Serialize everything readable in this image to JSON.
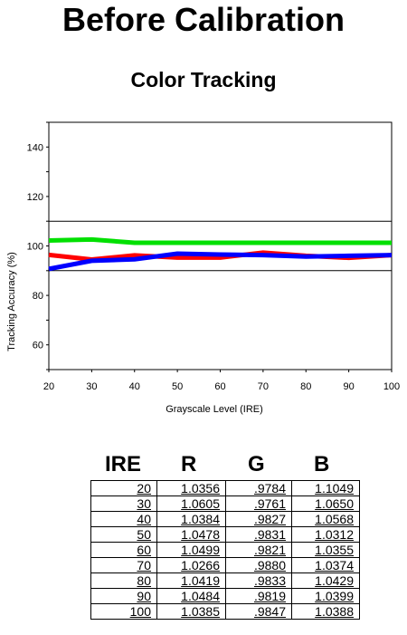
{
  "page": {
    "title": "Before Calibration",
    "subtitle": "Color Tracking"
  },
  "chart_data": {
    "type": "line",
    "xlabel": "Grayscale Level (IRE)",
    "ylabel": "Tracking Accuracy (%)",
    "x": [
      20,
      30,
      40,
      50,
      60,
      70,
      80,
      90,
      100
    ],
    "xticks": [
      "20",
      "30",
      "40",
      "50",
      "60",
      "70",
      "80",
      "90",
      "100"
    ],
    "yticks": [
      "60",
      "80",
      "100",
      "120",
      "140"
    ],
    "xlim": [
      20,
      100
    ],
    "ylim": [
      50,
      150
    ],
    "reference_lines": [
      90,
      110
    ],
    "series": [
      {
        "color": "#ff0000",
        "values": [
          96.4,
          94.5,
          96.2,
          95.3,
          95.3,
          97.3,
          96.0,
          95.2,
          96.3
        ]
      },
      {
        "color": "#00e000",
        "values": [
          102.2,
          102.6,
          101.3,
          101.3,
          101.3,
          101.3,
          101.3,
          101.3,
          101.3
        ]
      },
      {
        "color": "#0000ff",
        "values": [
          90.7,
          94.0,
          94.6,
          96.9,
          96.5,
          96.3,
          95.7,
          96.0,
          96.3
        ]
      }
    ]
  },
  "table": {
    "headers": [
      "IRE",
      "R",
      "G",
      "B"
    ],
    "rows": [
      [
        "20",
        "1.0356",
        ".9784",
        "1.1049"
      ],
      [
        "30",
        "1.0605",
        ".9761",
        "1.0650"
      ],
      [
        "40",
        "1.0384",
        ".9827",
        "1.0568"
      ],
      [
        "50",
        "1.0478",
        ".9831",
        "1.0312"
      ],
      [
        "60",
        "1.0499",
        ".9821",
        "1.0355"
      ],
      [
        "70",
        "1.0266",
        ".9880",
        "1.0374"
      ],
      [
        "80",
        "1.0419",
        ".9833",
        "1.0429"
      ],
      [
        "90",
        "1.0484",
        ".9819",
        "1.0399"
      ],
      [
        "100",
        "1.0385",
        ".9847",
        "1.0388"
      ]
    ]
  }
}
